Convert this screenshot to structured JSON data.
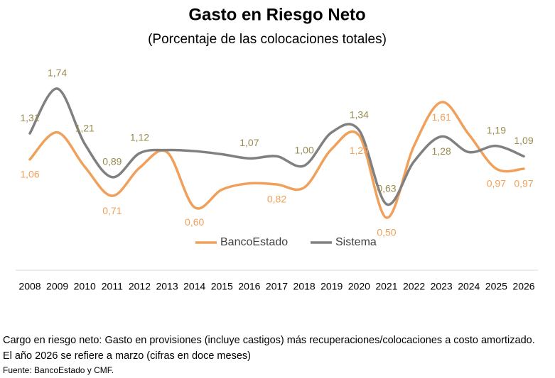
{
  "chart_data": {
    "type": "line",
    "title": "Gasto en Riesgo Neto",
    "subtitle": "(Porcentaje de las colocaciones totales)",
    "categories": [
      "2008",
      "2009",
      "2010",
      "2011",
      "2012",
      "2013",
      "2014",
      "2015",
      "2016",
      "2017",
      "2018",
      "2019",
      "2020",
      "2021",
      "2022",
      "2023",
      "2024",
      "2025",
      "2026"
    ],
    "series": [
      {
        "name": "BancoEstado",
        "color": "#f0a05a",
        "label_color": "#f0a05a",
        "values": [
          1.06,
          1.32,
          0.99,
          0.71,
          0.98,
          1.13,
          0.6,
          0.77,
          0.83,
          0.82,
          0.79,
          1.16,
          1.29,
          0.5,
          1.19,
          1.61,
          1.3,
          0.97,
          0.97
        ],
        "value_labels": [
          "1,06",
          null,
          null,
          "0,71",
          null,
          null,
          "0,60",
          null,
          null,
          "0,82",
          null,
          null,
          "1,29",
          "0,50",
          null,
          "1,61",
          null,
          "0,97",
          "0,97"
        ]
      },
      {
        "name": "Sistema",
        "color": "#808080",
        "label_color": "#978b4f",
        "values": [
          1.31,
          1.74,
          1.21,
          0.89,
          1.12,
          1.15,
          1.14,
          1.11,
          1.07,
          1.09,
          1.0,
          1.32,
          1.34,
          0.63,
          1.04,
          1.28,
          1.13,
          1.19,
          1.09
        ],
        "value_labels": [
          "1,31",
          "1,74",
          "1,21",
          "0,89",
          "1,12",
          null,
          null,
          null,
          "1,07",
          null,
          "1,00",
          null,
          "1,34",
          "0,63",
          null,
          "1,28",
          null,
          "1,19",
          "1,09"
        ]
      }
    ],
    "legend": "inside-bottom",
    "note": " Cargo en riesgo neto: Gasto en provisiones (incluye castigos) más recuperaciones/colocaciones a costo amortizado. El año 2026 se refiere a marzo (cifras en doce meses)",
    "source": "Fuente: BancoEstado y CMF."
  }
}
